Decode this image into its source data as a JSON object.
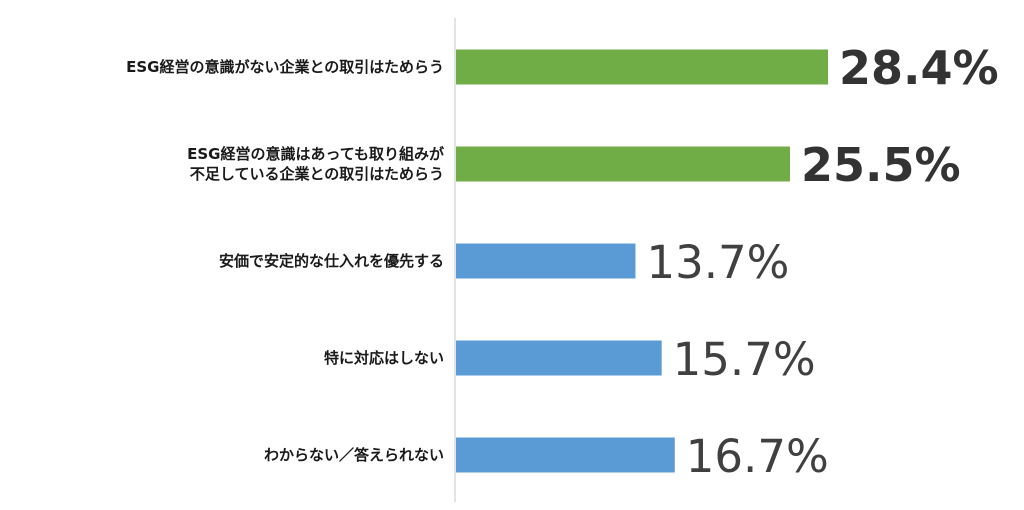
{
  "chart_data": {
    "type": "bar",
    "orientation": "horizontal",
    "categories": [
      "ESG経営の意識がない企業との取引はためらう",
      "ESG経営の意識はあっても取り組みが\n不足している企業との取引はためらう",
      "安価で安定的な仕入れを優先する",
      "特に対応はしない",
      "わからない／答えられない"
    ],
    "values": [
      28.4,
      25.5,
      13.7,
      15.7,
      16.7
    ],
    "value_labels": [
      "28.4%",
      "25.5%",
      "13.7%",
      "15.7%",
      "16.7%"
    ],
    "bar_colors": [
      "#70ad47",
      "#70ad47",
      "#5b9bd5",
      "#5b9bd5",
      "#5b9bd5"
    ],
    "label_bold": [
      true,
      true,
      false,
      false,
      false
    ],
    "xlim": [
      0,
      38
    ],
    "grid": false,
    "legend": "none"
  }
}
